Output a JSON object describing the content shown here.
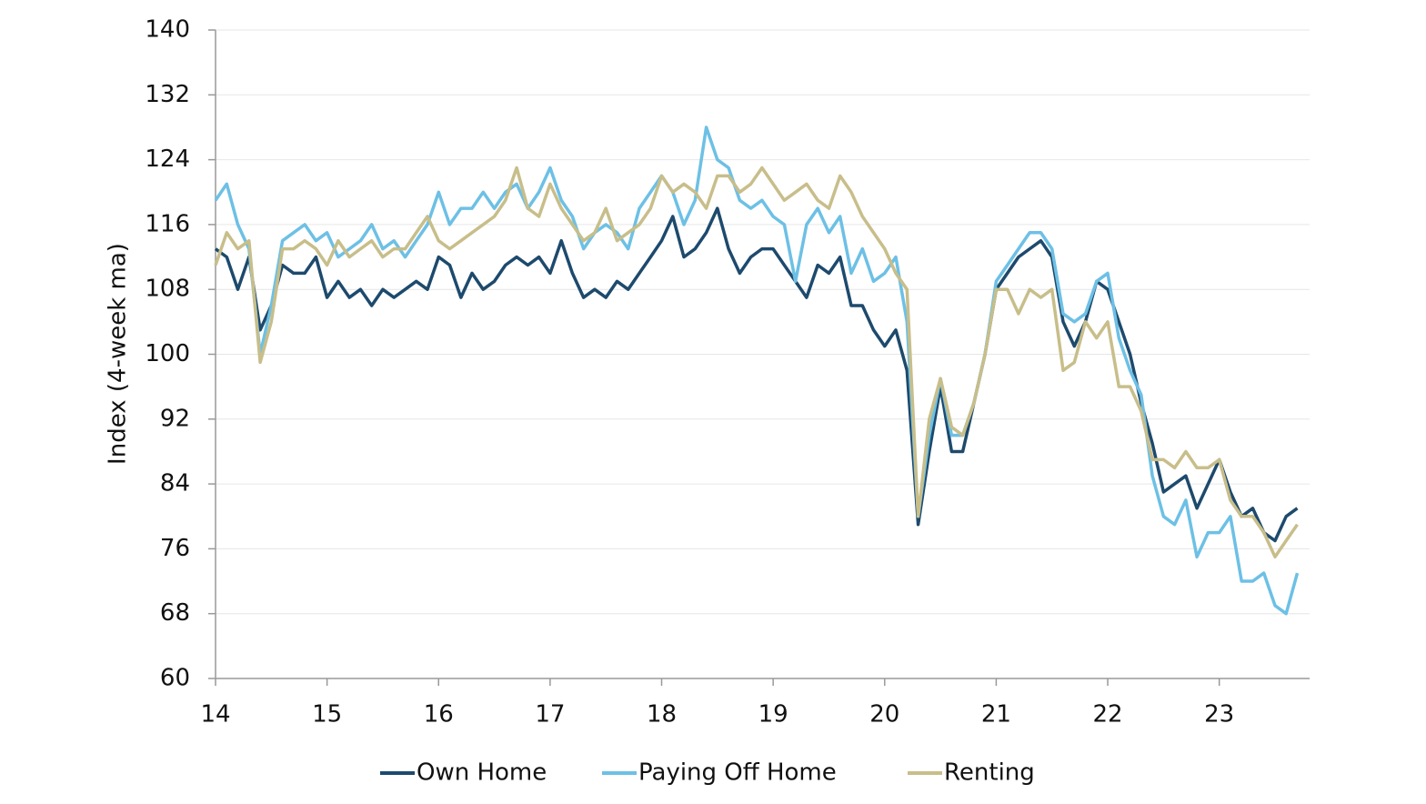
{
  "chart_data": {
    "type": "line",
    "y_label": "Index (4-week ma)",
    "xlim": [
      14,
      23.81
    ],
    "xticks": [
      14,
      15,
      16,
      17,
      18,
      19,
      20,
      21,
      22,
      23
    ],
    "ylim": [
      60,
      140
    ],
    "yticks": [
      60,
      68,
      76,
      84,
      92,
      100,
      108,
      116,
      124,
      132,
      140
    ],
    "grid": true,
    "legend": "bottom",
    "x": [
      14.0,
      14.1,
      14.2,
      14.3,
      14.4,
      14.5,
      14.6,
      14.7,
      14.8,
      14.9,
      15.0,
      15.1,
      15.2,
      15.3,
      15.4,
      15.5,
      15.6,
      15.7,
      15.8,
      15.9,
      16.0,
      16.1,
      16.2,
      16.3,
      16.4,
      16.5,
      16.6,
      16.7,
      16.8,
      16.9,
      17.0,
      17.1,
      17.2,
      17.3,
      17.4,
      17.5,
      17.6,
      17.7,
      17.8,
      17.9,
      18.0,
      18.1,
      18.2,
      18.3,
      18.4,
      18.5,
      18.6,
      18.7,
      18.8,
      18.9,
      19.0,
      19.1,
      19.2,
      19.3,
      19.4,
      19.5,
      19.6,
      19.7,
      19.8,
      19.9,
      20.0,
      20.1,
      20.2,
      20.3,
      20.4,
      20.5,
      20.6,
      20.7,
      20.8,
      20.9,
      21.0,
      21.1,
      21.2,
      21.3,
      21.4,
      21.5,
      21.6,
      21.7,
      21.8,
      21.9,
      22.0,
      22.1,
      22.2,
      22.3,
      22.4,
      22.5,
      22.6,
      22.7,
      22.8,
      22.9,
      23.0,
      23.1,
      23.2,
      23.3,
      23.4,
      23.5,
      23.6,
      23.7
    ],
    "series": [
      {
        "name": "Own Home",
        "color": "#1d4a6d",
        "values": [
          113,
          112,
          108,
          112,
          103,
          106,
          111,
          110,
          110,
          112,
          107,
          109,
          107,
          108,
          106,
          108,
          107,
          108,
          109,
          108,
          112,
          111,
          107,
          110,
          108,
          109,
          111,
          112,
          111,
          112,
          110,
          114,
          110,
          107,
          108,
          107,
          109,
          108,
          110,
          112,
          114,
          117,
          112,
          113,
          115,
          118,
          113,
          110,
          112,
          113,
          113,
          111,
          109,
          107,
          111,
          110,
          112,
          106,
          106,
          103,
          101,
          103,
          98,
          79,
          88,
          96,
          88,
          88,
          94,
          100,
          108,
          110,
          112,
          113,
          114,
          112,
          104,
          101,
          104,
          109,
          108,
          104,
          100,
          94,
          89,
          83,
          84,
          85,
          81,
          84,
          87,
          83,
          80,
          81,
          78,
          77,
          80,
          81
        ]
      },
      {
        "name": "Paying Off Home",
        "color": "#6dc0e5",
        "values": [
          119,
          121,
          116,
          113,
          100,
          106,
          114,
          115,
          116,
          114,
          115,
          112,
          113,
          114,
          116,
          113,
          114,
          112,
          114,
          116,
          120,
          116,
          118,
          118,
          120,
          118,
          120,
          121,
          118,
          120,
          123,
          119,
          117,
          113,
          115,
          116,
          115,
          113,
          118,
          120,
          122,
          120,
          116,
          119,
          128,
          124,
          123,
          119,
          118,
          119,
          117,
          116,
          109,
          116,
          118,
          115,
          117,
          110,
          113,
          109,
          110,
          112,
          104,
          80,
          90,
          97,
          90,
          90,
          94,
          100,
          109,
          111,
          113,
          115,
          115,
          113,
          105,
          104,
          105,
          109,
          110,
          102,
          98,
          95,
          85,
          80,
          79,
          82,
          75,
          78,
          78,
          80,
          72,
          72,
          73,
          69,
          68,
          73
        ]
      },
      {
        "name": "Renting",
        "color": "#c8be8a",
        "values": [
          111,
          115,
          113,
          114,
          99,
          104,
          113,
          113,
          114,
          113,
          111,
          114,
          112,
          113,
          114,
          112,
          113,
          113,
          115,
          117,
          114,
          113,
          114,
          115,
          116,
          117,
          119,
          123,
          118,
          117,
          121,
          118,
          116,
          114,
          115,
          118,
          114,
          115,
          116,
          118,
          122,
          120,
          121,
          120,
          118,
          122,
          122,
          120,
          121,
          123,
          121,
          119,
          120,
          121,
          119,
          118,
          122,
          120,
          117,
          115,
          113,
          110,
          108,
          80,
          92,
          97,
          91,
          90,
          94,
          100,
          108,
          108,
          105,
          108,
          107,
          108,
          98,
          99,
          104,
          102,
          104,
          96,
          96,
          93,
          87,
          87,
          86,
          88,
          86,
          86,
          87,
          82,
          80,
          80,
          78,
          75,
          77,
          79
        ]
      }
    ]
  }
}
